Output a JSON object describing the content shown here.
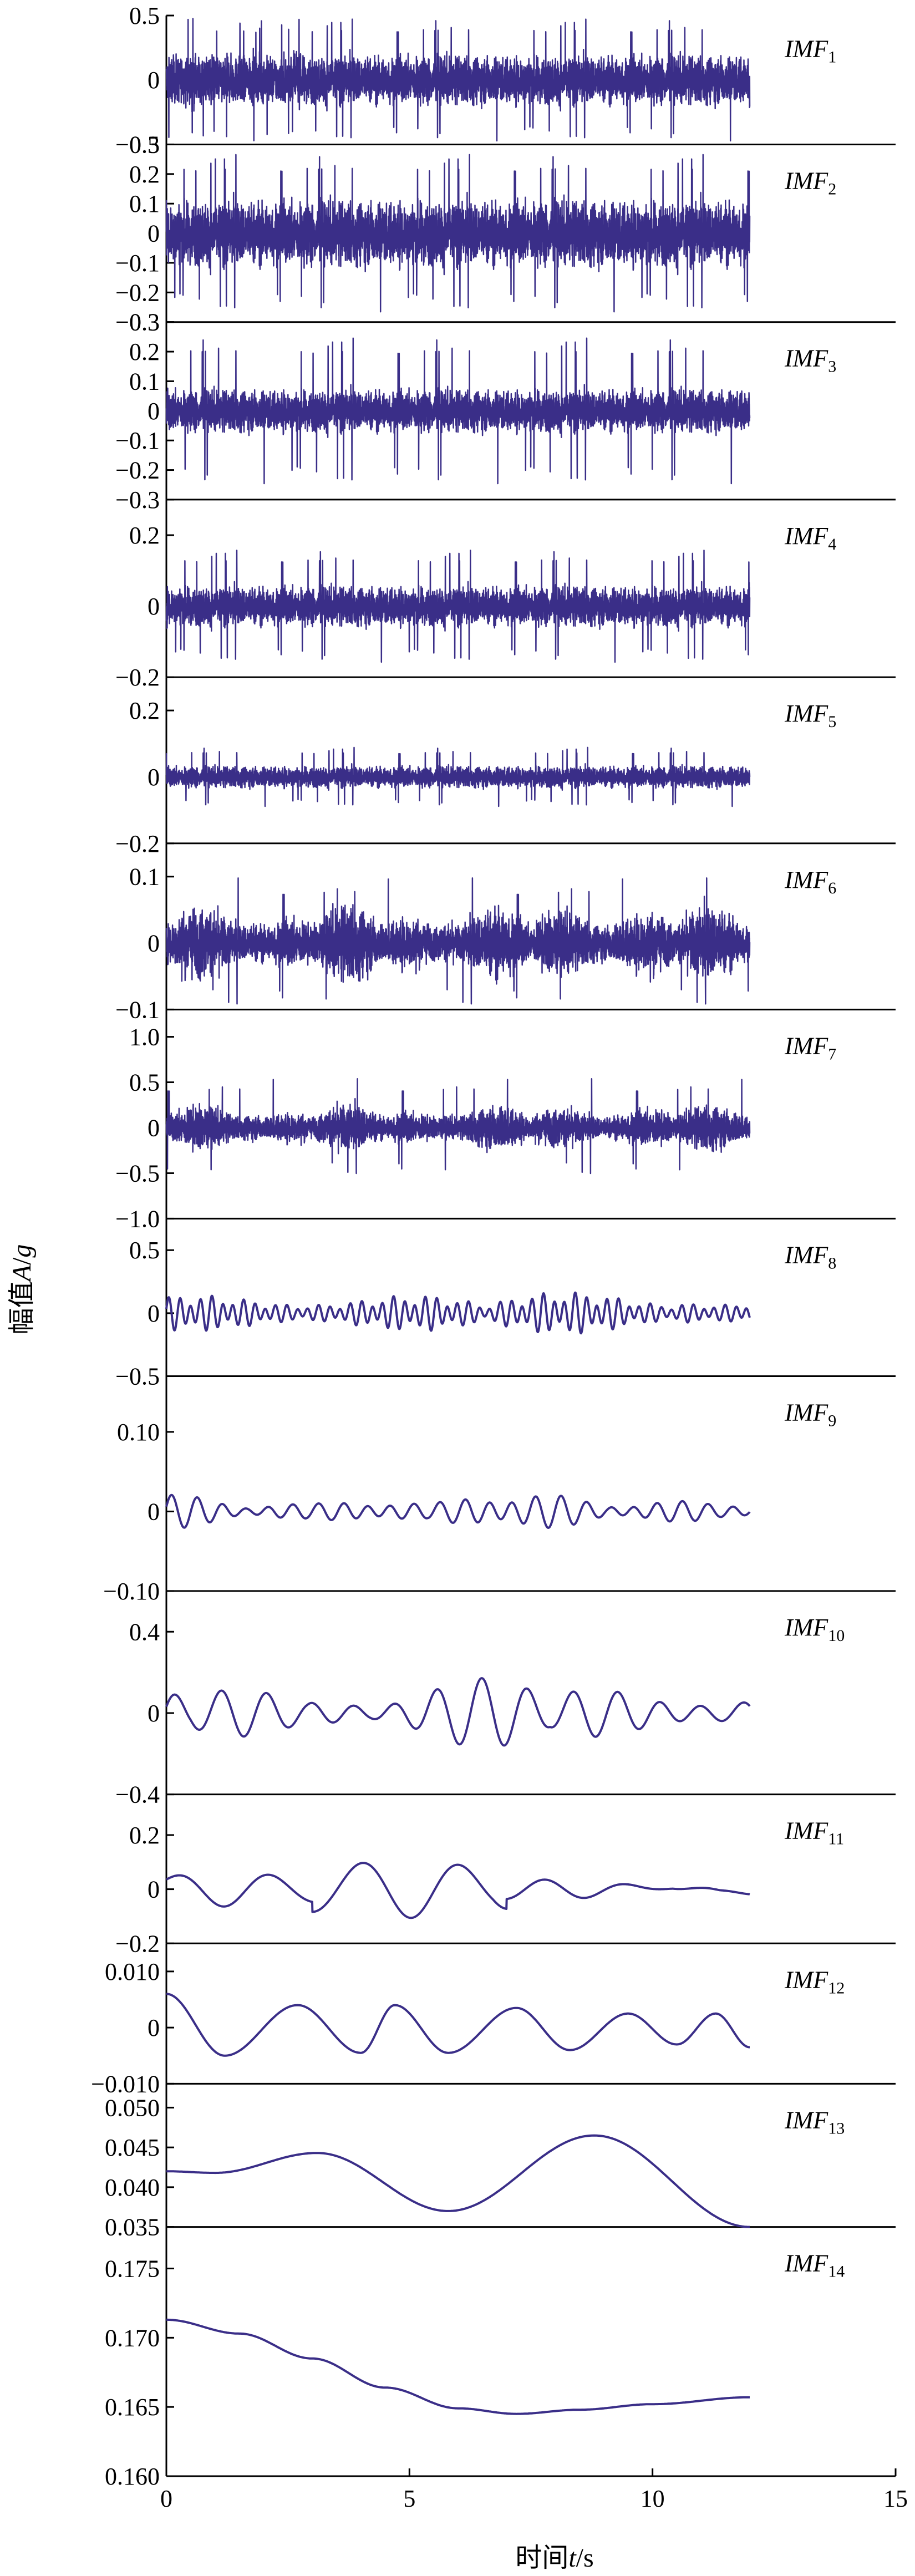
{
  "chart_data": [
    {
      "type": "line",
      "series": [
        {
          "name": "IMF",
          "sub": "1"
        }
      ],
      "ylim": [
        -0.5,
        0.5
      ],
      "yticks": [
        "0.5",
        "0",
        "−0.5"
      ],
      "style": "noise",
      "amp": 0.24,
      "spike": 0.48,
      "mean": 0,
      "xlim": [
        0,
        15
      ]
    },
    {
      "type": "line",
      "series": [
        {
          "name": "IMF",
          "sub": "2"
        }
      ],
      "ylim": [
        -0.3,
        0.3
      ],
      "yticks": [
        "0.3",
        "0.2",
        "0.1",
        "0",
        "−0.1",
        "−0.2",
        "−0.3"
      ],
      "style": "noise",
      "amp": 0.14,
      "spike": 0.27,
      "mean": 0,
      "xlim": [
        0,
        15
      ]
    },
    {
      "type": "line",
      "series": [
        {
          "name": "IMF",
          "sub": "3"
        }
      ],
      "ylim": [
        -0.3,
        0.3
      ],
      "yticks": [
        "0.3",
        "0.2",
        "0.1",
        "0",
        "−0.1",
        "−0.2",
        "−0.3"
      ],
      "style": "noise",
      "amp": 0.09,
      "spike": 0.25,
      "mean": 0,
      "xlim": [
        0,
        15
      ]
    },
    {
      "type": "line",
      "series": [
        {
          "name": "IMF",
          "sub": "4"
        }
      ],
      "ylim": [
        -0.2,
        0.3
      ],
      "yticks": [
        "0.2",
        "0",
        "−0.2"
      ],
      "style": "noise",
      "amp": 0.07,
      "spike": 0.16,
      "mean": 0,
      "xlim": [
        0,
        15
      ]
    },
    {
      "type": "line",
      "series": [
        {
          "name": "IMF",
          "sub": "5"
        }
      ],
      "ylim": [
        -0.2,
        0.3
      ],
      "yticks": [
        "0.2",
        "0",
        "−0.2"
      ],
      "style": "noise",
      "amp": 0.04,
      "spike": 0.09,
      "mean": 0,
      "xlim": [
        0,
        15
      ]
    },
    {
      "type": "line",
      "series": [
        {
          "name": "IMF",
          "sub": "6"
        }
      ],
      "ylim": [
        -0.1,
        0.15
      ],
      "yticks": [
        "0.1",
        "0",
        "−0.1"
      ],
      "style": "burst",
      "amp": 0.045,
      "spike": 0.1,
      "mean": 0,
      "xlim": [
        0,
        15
      ]
    },
    {
      "type": "line",
      "series": [
        {
          "name": "IMF",
          "sub": "7"
        }
      ],
      "ylim": [
        -1.0,
        1.3
      ],
      "yticks": [
        "1.0",
        "0.5",
        "0",
        "−0.5",
        "−1.0"
      ],
      "style": "burst",
      "amp": 0.2,
      "spike": 0.55,
      "mean": 0,
      "xlim": [
        0,
        15
      ]
    },
    {
      "type": "line",
      "series": [
        {
          "name": "IMF",
          "sub": "8"
        }
      ],
      "ylim": [
        -0.5,
        0.75
      ],
      "yticks": [
        "0.5",
        "0",
        "−0.5"
      ],
      "style": "wave",
      "periods": [
        0.22,
        0.31,
        0.27
      ],
      "amp": 0.18,
      "spike": 0.38,
      "mean": 0,
      "xlim": [
        0,
        15
      ]
    },
    {
      "type": "line",
      "series": [
        {
          "name": "IMF",
          "sub": "9"
        }
      ],
      "ylim": [
        -0.1,
        0.17
      ],
      "yticks": [
        "0.10",
        "0",
        "−0.10"
      ],
      "style": "wave",
      "periods": [
        0.5,
        0.62,
        0.45
      ],
      "amp": 0.025,
      "spike": 0.07,
      "mean": 0,
      "xlim": [
        0,
        15
      ]
    },
    {
      "type": "line",
      "series": [
        {
          "name": "IMF",
          "sub": "10"
        }
      ],
      "ylim": [
        -0.4,
        0.6
      ],
      "yticks": [
        "0.4",
        "0",
        "−0.4"
      ],
      "style": "wave",
      "periods": [
        0.9,
        1.05,
        0.8
      ],
      "amp": 0.2,
      "spike": 0.3,
      "mean": 0,
      "xlim": [
        0,
        15
      ]
    },
    {
      "type": "line",
      "series": [
        {
          "name": "IMF",
          "sub": "11"
        }
      ],
      "ylim": [
        -0.2,
        0.35
      ],
      "yticks": [
        "0.2",
        "0",
        "−0.2"
      ],
      "style": "wave",
      "periods": [
        1.8,
        2.2,
        1.6
      ],
      "amp": 0.08,
      "spike": 0.15,
      "mean": 0,
      "xlim": [
        0,
        15
      ]
    },
    {
      "type": "line",
      "series": [
        {
          "name": "IMF",
          "sub": "12"
        }
      ],
      "x": [
        0,
        1.2,
        2.7,
        4,
        4.7,
        5.8,
        7.2,
        8.3,
        9.5,
        10.5,
        11.3,
        12
      ],
      "y": [
        0.006,
        -0.005,
        0.004,
        -0.0045,
        0.004,
        -0.0045,
        0.0035,
        -0.004,
        0.0025,
        -0.003,
        0.0025,
        -0.0035
      ],
      "ylim": [
        -0.01,
        0.015
      ],
      "yticks": [
        "0.010",
        "0",
        "−0.010"
      ],
      "style": "smooth",
      "xlim": [
        0,
        15
      ]
    },
    {
      "type": "line",
      "series": [
        {
          "name": "IMF",
          "sub": "13"
        }
      ],
      "x": [
        0,
        1,
        3.1,
        5.8,
        8.8,
        12
      ],
      "y": [
        0.042,
        0.0418,
        0.0443,
        0.037,
        0.0465,
        0.035
      ],
      "ylim": [
        0.035,
        0.053
      ],
      "yticks": [
        "0.050",
        "0.045",
        "0.040",
        "0.035"
      ],
      "style": "smooth",
      "xlim": [
        0,
        15
      ]
    },
    {
      "type": "line",
      "series": [
        {
          "name": "IMF",
          "sub": "14"
        }
      ],
      "x": [
        0,
        1.5,
        3,
        4.5,
        6,
        7.2,
        8.5,
        10,
        12
      ],
      "y": [
        0.1713,
        0.1703,
        0.1685,
        0.1664,
        0.1649,
        0.1645,
        0.1648,
        0.1652,
        0.1657
      ],
      "ylim": [
        0.16,
        0.178
      ],
      "yticks": [
        "0.175",
        "0.170",
        "0.165",
        "0.160"
      ],
      "style": "smooth",
      "xlim": [
        0,
        15
      ]
    }
  ],
  "x_axis": {
    "ticks": [
      "0",
      "5",
      "10",
      "15"
    ],
    "label_cn": "时间",
    "label_var": "t",
    "label_unit": "/s"
  },
  "y_axis": {
    "label_cn": "幅值",
    "label_var": "A",
    "label_unit": "/",
    "label_unit2": "g"
  },
  "colors": {
    "line": "#3a2e88",
    "axis": "#000000"
  }
}
